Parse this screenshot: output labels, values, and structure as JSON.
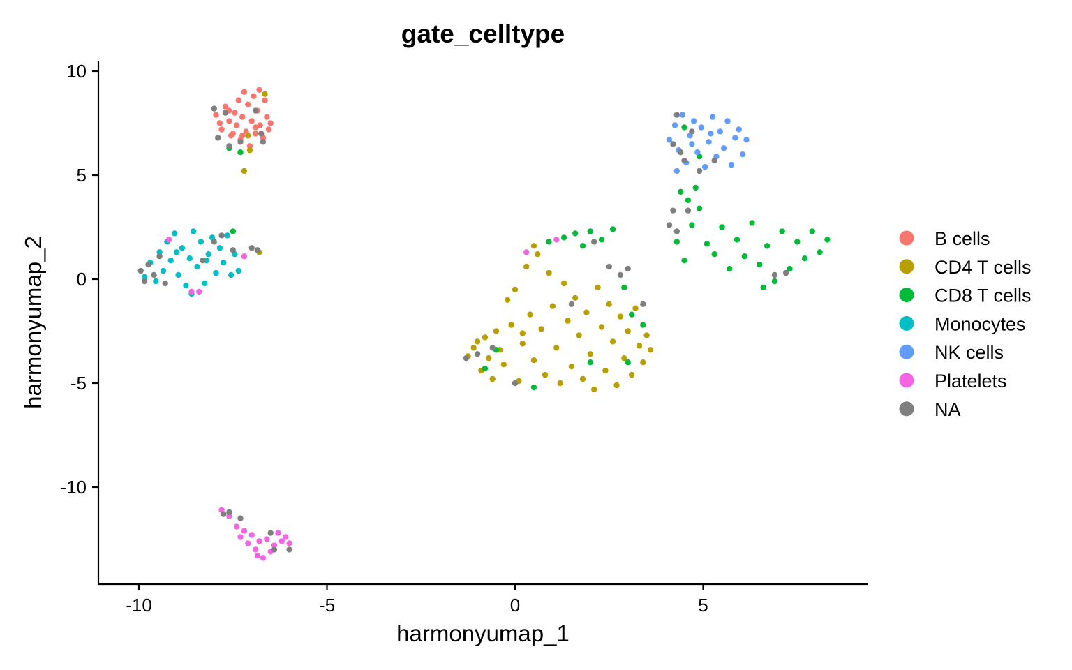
{
  "chart_data": {
    "type": "scatter",
    "title": "gate_celltype",
    "xlabel": "harmonyumap_1",
    "ylabel": "harmonyumap_2",
    "xlim": [
      -11.1,
      9.4
    ],
    "ylim": [
      -14.5,
      10.4
    ],
    "x_ticks": [
      -10,
      -5,
      0,
      5
    ],
    "x_tick_labels": [
      "-10",
      "-5",
      "0",
      "5"
    ],
    "y_ticks": [
      10,
      5,
      0,
      -5,
      -10
    ],
    "y_tick_labels": [
      "10",
      "5",
      "0",
      "-5",
      "-10"
    ],
    "grid": false,
    "legend_placement": "right",
    "point_note": "each series lists representative sampled points from its visible clusters",
    "series": [
      {
        "name": "B cells",
        "color": "#F8766D",
        "points": [
          [
            -7.95,
            7.9
          ],
          [
            -7.8,
            7.2
          ],
          [
            -7.7,
            8.3
          ],
          [
            -7.6,
            7.6
          ],
          [
            -7.55,
            6.9
          ],
          [
            -7.45,
            8.0
          ],
          [
            -7.4,
            7.4
          ],
          [
            -7.35,
            8.6
          ],
          [
            -7.3,
            6.7
          ],
          [
            -7.25,
            7.8
          ],
          [
            -7.2,
            9.0
          ],
          [
            -7.15,
            7.1
          ],
          [
            -7.1,
            8.4
          ],
          [
            -7.05,
            6.4
          ],
          [
            -7.0,
            7.6
          ],
          [
            -6.95,
            8.8
          ],
          [
            -6.9,
            7.0
          ],
          [
            -6.85,
            8.1
          ],
          [
            -6.8,
            9.1
          ],
          [
            -6.78,
            7.4
          ],
          [
            -6.7,
            6.8
          ],
          [
            -6.65,
            8.6
          ],
          [
            -6.6,
            7.8
          ],
          [
            -6.55,
            7.2
          ],
          [
            -6.5,
            7.5
          ],
          [
            -7.85,
            7.5
          ],
          [
            -7.6,
            8.1
          ],
          [
            -7.5,
            7.0
          ],
          [
            -7.25,
            6.9
          ],
          [
            -6.9,
            7.3
          ]
        ]
      },
      {
        "name": "CD4 T cells",
        "color": "#B79F00",
        "points": [
          [
            -6.65,
            8.9
          ],
          [
            -7.05,
            6.2
          ],
          [
            -7.2,
            5.2
          ],
          [
            -7.1,
            6.9
          ],
          [
            -6.8,
            1.3
          ],
          [
            -1.25,
            -3.7
          ],
          [
            -1.1,
            -3.3
          ],
          [
            -1.0,
            -3.0
          ],
          [
            -0.9,
            -4.4
          ],
          [
            -0.8,
            -2.8
          ],
          [
            -0.7,
            -3.8
          ],
          [
            -0.6,
            -4.8
          ],
          [
            -0.5,
            -2.5
          ],
          [
            -0.4,
            -3.4
          ],
          [
            -0.3,
            -4.1
          ],
          [
            -0.2,
            -1.0
          ],
          [
            -0.1,
            -2.2
          ],
          [
            0.0,
            -0.5
          ],
          [
            0.1,
            -4.9
          ],
          [
            0.2,
            -3.1
          ],
          [
            0.3,
            0.6
          ],
          [
            0.4,
            -1.7
          ],
          [
            0.5,
            -3.9
          ],
          [
            0.6,
            1.2
          ],
          [
            0.7,
            -2.4
          ],
          [
            0.8,
            -4.6
          ],
          [
            0.9,
            0.3
          ],
          [
            1.0,
            -1.3
          ],
          [
            1.1,
            -3.3
          ],
          [
            1.2,
            -5.0
          ],
          [
            1.3,
            -0.2
          ],
          [
            1.4,
            -2.0
          ],
          [
            1.5,
            -4.2
          ],
          [
            1.6,
            -0.9
          ],
          [
            1.7,
            -2.7
          ],
          [
            1.8,
            -4.8
          ],
          [
            1.9,
            -1.6
          ],
          [
            2.0,
            -3.6
          ],
          [
            2.1,
            -5.3
          ],
          [
            2.2,
            -0.4
          ],
          [
            2.3,
            -2.3
          ],
          [
            2.4,
            -4.4
          ],
          [
            2.5,
            -1.2
          ],
          [
            2.6,
            -3.0
          ],
          [
            2.7,
            -5.1
          ],
          [
            2.8,
            -1.8
          ],
          [
            2.9,
            -3.8
          ],
          [
            3.0,
            -2.5
          ],
          [
            3.1,
            -4.6
          ],
          [
            3.2,
            -1.4
          ],
          [
            3.3,
            -3.2
          ],
          [
            3.4,
            -4.0
          ],
          [
            3.5,
            -2.7
          ],
          [
            3.6,
            -3.4
          ],
          [
            0.5,
            1.6
          ],
          [
            0.2,
            -2.6
          ]
        ]
      },
      {
        "name": "CD8 T cells",
        "color": "#00BA38",
        "points": [
          [
            -7.6,
            6.3
          ],
          [
            -7.3,
            6.1
          ],
          [
            -7.5,
            2.3
          ],
          [
            0.9,
            1.8
          ],
          [
            1.3,
            2.0
          ],
          [
            1.6,
            2.2
          ],
          [
            1.8,
            1.6
          ],
          [
            2.0,
            2.3
          ],
          [
            2.3,
            1.9
          ],
          [
            2.6,
            2.4
          ],
          [
            2.9,
            -0.4
          ],
          [
            3.1,
            -1.7
          ],
          [
            3.4,
            -2.2
          ],
          [
            3.0,
            -4.0
          ],
          [
            -0.8,
            -4.3
          ],
          [
            -0.5,
            -3.4
          ],
          [
            0.5,
            -5.2
          ],
          [
            2.0,
            -4.0
          ],
          [
            4.3,
            1.8
          ],
          [
            4.5,
            0.9
          ],
          [
            4.7,
            2.6
          ],
          [
            4.9,
            3.4
          ],
          [
            5.1,
            1.7
          ],
          [
            5.3,
            1.2
          ],
          [
            5.5,
            2.5
          ],
          [
            5.7,
            0.5
          ],
          [
            5.9,
            1.9
          ],
          [
            6.1,
            1.1
          ],
          [
            6.3,
            2.7
          ],
          [
            6.5,
            0.7
          ],
          [
            6.7,
            1.6
          ],
          [
            6.9,
            -0.1
          ],
          [
            7.1,
            2.3
          ],
          [
            7.3,
            0.5
          ],
          [
            7.5,
            1.8
          ],
          [
            7.7,
            1.0
          ],
          [
            7.9,
            2.3
          ],
          [
            8.1,
            1.3
          ],
          [
            8.3,
            1.9
          ],
          [
            6.6,
            -0.4
          ],
          [
            4.4,
            4.2
          ],
          [
            4.6,
            3.8
          ],
          [
            4.8,
            4.4
          ],
          [
            4.5,
            7.3
          ],
          [
            4.9,
            5.9
          ]
        ]
      },
      {
        "name": "Monocytes",
        "color": "#00BFC4",
        "points": [
          [
            -9.85,
            0.1
          ],
          [
            -9.7,
            0.8
          ],
          [
            -9.55,
            -0.1
          ],
          [
            -9.45,
            1.3
          ],
          [
            -9.35,
            0.4
          ],
          [
            -9.25,
            1.8
          ],
          [
            -9.15,
            0.9
          ],
          [
            -9.05,
            2.2
          ],
          [
            -8.95,
            0.2
          ],
          [
            -8.85,
            1.5
          ],
          [
            -8.75,
            -0.3
          ],
          [
            -8.65,
            1.0
          ],
          [
            -8.55,
            2.3
          ],
          [
            -8.45,
            0.6
          ],
          [
            -8.35,
            1.8
          ],
          [
            -8.25,
            -0.2
          ],
          [
            -8.15,
            1.2
          ],
          [
            -8.05,
            2.0
          ],
          [
            -7.95,
            0.3
          ],
          [
            -7.85,
            1.5
          ],
          [
            -7.75,
            0.8
          ],
          [
            -7.65,
            2.1
          ],
          [
            -7.55,
            0.2
          ],
          [
            -7.45,
            1.2
          ],
          [
            -7.35,
            0.4
          ],
          [
            -8.6,
            -0.7
          ],
          [
            -9.0,
            1.3
          ],
          [
            -8.2,
            0.9
          ]
        ]
      },
      {
        "name": "NK cells",
        "color": "#619CFF",
        "points": [
          [
            4.1,
            6.7
          ],
          [
            4.25,
            7.4
          ],
          [
            4.35,
            6.2
          ],
          [
            4.45,
            7.9
          ],
          [
            4.55,
            5.6
          ],
          [
            4.65,
            6.9
          ],
          [
            4.75,
            7.6
          ],
          [
            4.85,
            6.1
          ],
          [
            4.95,
            7.3
          ],
          [
            5.05,
            5.4
          ],
          [
            5.15,
            6.6
          ],
          [
            5.25,
            7.8
          ],
          [
            5.35,
            5.9
          ],
          [
            5.45,
            7.1
          ],
          [
            5.55,
            6.3
          ],
          [
            5.65,
            7.6
          ],
          [
            5.75,
            5.5
          ],
          [
            5.85,
            6.8
          ],
          [
            5.95,
            7.2
          ],
          [
            6.05,
            6.0
          ],
          [
            6.15,
            6.7
          ],
          [
            4.3,
            5.2
          ],
          [
            4.7,
            6.5
          ],
          [
            5.2,
            7.0
          ]
        ]
      },
      {
        "name": "Platelets",
        "color": "#F564E3",
        "points": [
          [
            -7.8,
            -11.1
          ],
          [
            -7.6,
            -11.4
          ],
          [
            -7.4,
            -11.9
          ],
          [
            -7.3,
            -12.4
          ],
          [
            -7.2,
            -12.1
          ],
          [
            -7.1,
            -12.7
          ],
          [
            -7.0,
            -12.3
          ],
          [
            -6.9,
            -13.0
          ],
          [
            -6.8,
            -12.6
          ],
          [
            -6.7,
            -13.4
          ],
          [
            -6.6,
            -12.5
          ],
          [
            -6.5,
            -13.1
          ],
          [
            -6.4,
            -12.8
          ],
          [
            -6.3,
            -12.2
          ],
          [
            -6.2,
            -12.6
          ],
          [
            -6.1,
            -12.4
          ],
          [
            -6.0,
            -12.7
          ],
          [
            -8.6,
            -0.6
          ],
          [
            -8.4,
            -0.6
          ],
          [
            -9.2,
            1.9
          ],
          [
            -7.2,
            1.1
          ],
          [
            0.3,
            1.3
          ],
          [
            1.1,
            1.9
          ],
          [
            -6.85,
            -13.3
          ]
        ]
      },
      {
        "name": "NA",
        "color": "#7F7F7F",
        "points": [
          [
            -8.0,
            8.2
          ],
          [
            -7.9,
            6.8
          ],
          [
            -7.7,
            8.0
          ],
          [
            -7.6,
            6.4
          ],
          [
            -7.3,
            6.6
          ],
          [
            -6.9,
            8.1
          ],
          [
            -6.7,
            6.6
          ],
          [
            -6.75,
            7.0
          ],
          [
            -9.95,
            0.4
          ],
          [
            -9.85,
            -0.1
          ],
          [
            -9.75,
            0.7
          ],
          [
            -9.6,
            0.2
          ],
          [
            -9.45,
            1.1
          ],
          [
            -9.3,
            -0.2
          ],
          [
            -8.3,
            0.9
          ],
          [
            -8.0,
            1.8
          ],
          [
            -7.8,
            2.1
          ],
          [
            -7.5,
            1.4
          ],
          [
            -7.0,
            1.5
          ],
          [
            -6.85,
            1.4
          ],
          [
            -7.3,
            -11.5
          ],
          [
            -7.6,
            -11.2
          ],
          [
            -6.4,
            -13.0
          ],
          [
            -6.0,
            -13.0
          ],
          [
            -6.5,
            -12.2
          ],
          [
            -7.75,
            -11.3
          ],
          [
            -1.3,
            -3.8
          ],
          [
            -0.6,
            -3.3
          ],
          [
            0.0,
            -5.0
          ],
          [
            1.5,
            -1.2
          ],
          [
            2.5,
            0.6
          ],
          [
            2.8,
            0.2
          ],
          [
            3.0,
            0.5
          ],
          [
            3.4,
            -1.2
          ],
          [
            2.1,
            1.8
          ],
          [
            4.1,
            2.6
          ],
          [
            4.3,
            2.3
          ],
          [
            4.2,
            3.3
          ],
          [
            4.6,
            3.3
          ],
          [
            4.2,
            6.5
          ],
          [
            4.3,
            7.9
          ],
          [
            4.4,
            6.1
          ],
          [
            4.5,
            5.7
          ],
          [
            4.7,
            7.1
          ],
          [
            4.9,
            5.2
          ],
          [
            5.3,
            5.7
          ],
          [
            6.9,
            0.2
          ],
          [
            7.2,
            0.3
          ],
          [
            -1.0,
            -3.6
          ]
        ]
      }
    ]
  }
}
